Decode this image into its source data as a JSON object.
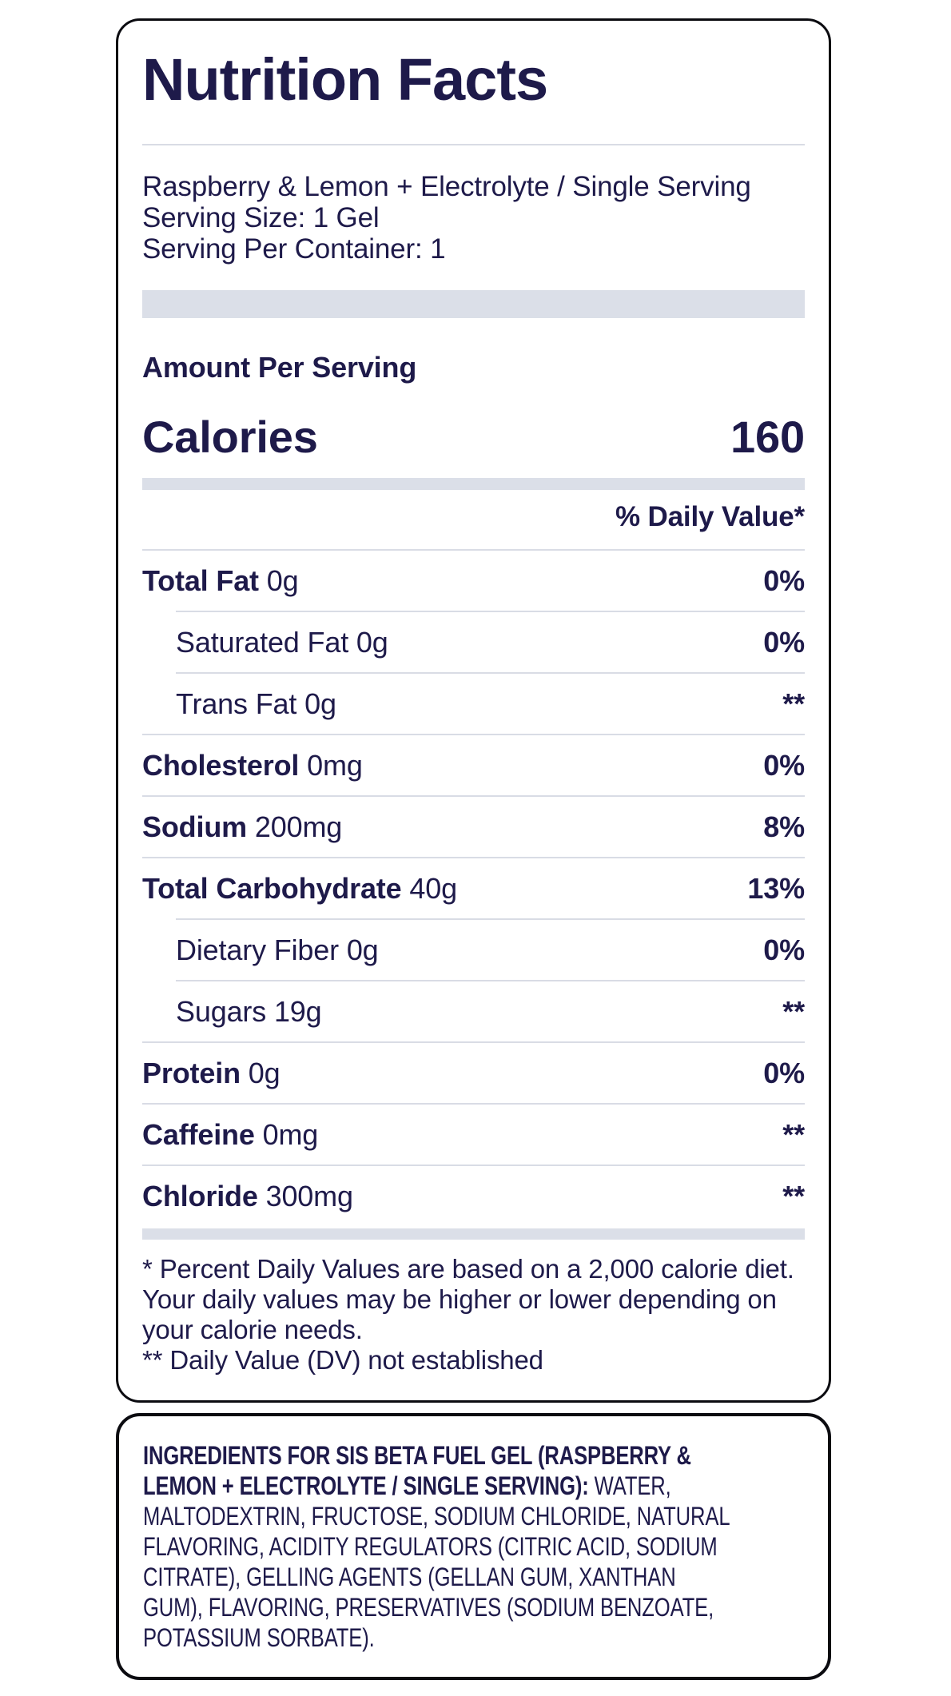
{
  "colors": {
    "text_navy": "#1e1a4a",
    "card_border": "#0b0b10",
    "divider_gray": "#d9dce5",
    "band_gray": "#dbdfe8",
    "background": "#ffffff"
  },
  "nutrition_label": {
    "title": "Nutrition Facts",
    "flavor": "Raspberry & Lemon + Electrolyte / Single Serving",
    "serving_size": "Serving Size: 1 Gel",
    "servings_per_container": "Serving Per Container: 1",
    "amount_per_serving": "Amount Per Serving",
    "calories_label": "Calories",
    "calories_value": "160",
    "daily_value_header": "% Daily Value*",
    "rows": [
      {
        "bold": "Total Fat",
        "rest": " 0g",
        "dv": "0%"
      },
      {
        "bold": "",
        "rest": "Saturated Fat 0g",
        "dv": "0%"
      },
      {
        "bold": "",
        "rest": "Trans Fat 0g",
        "dv": "**"
      },
      {
        "bold": "Cholesterol",
        "rest": " 0mg",
        "dv": "0%"
      },
      {
        "bold": "Sodium",
        "rest": " 200mg",
        "dv": "8%"
      },
      {
        "bold": "Total Carbohydrate",
        "rest": " 40g",
        "dv": "13%"
      },
      {
        "bold": "",
        "rest": "Dietary Fiber 0g",
        "dv": "0%"
      },
      {
        "bold": "",
        "rest": "Sugars 19g",
        "dv": "**"
      },
      {
        "bold": "Protein",
        "rest": " 0g",
        "dv": "0%"
      },
      {
        "bold": "Caffeine",
        "rest": " 0mg",
        "dv": "**"
      },
      {
        "bold": "Chloride",
        "rest": " 300mg",
        "dv": "**"
      }
    ],
    "footnote_daily_values": "* Percent Daily Values are based on a 2,000 calorie diet. Your daily values may be higher or lower depending on your calorie needs.",
    "footnote_not_established": "** Daily Value (DV) not established"
  },
  "ingredients_panel": {
    "lines": [
      {
        "bold": "INGREDIENTS FOR SIS BETA FUEL GEL (RASPBERRY &",
        "rest": ""
      },
      {
        "bold": "LEMON + ELECTROLYTE / SINGLE SERVING):",
        "rest": " WATER,"
      },
      {
        "bold": "",
        "rest": "MALTODEXTRIN, FRUCTOSE, SODIUM CHLORIDE, NATURAL"
      },
      {
        "bold": "",
        "rest": "FLAVORING, ACIDITY REGULATORS (CITRIC ACID, SODIUM"
      },
      {
        "bold": "",
        "rest": "CITRATE), GELLING AGENTS (GELLAN GUM, XANTHAN"
      },
      {
        "bold": "",
        "rest": "GUM), FLAVORING, PRESERVATIVES (SODIUM BENZOATE,"
      },
      {
        "bold": "",
        "rest": "POTASSIUM SORBATE)."
      }
    ]
  }
}
